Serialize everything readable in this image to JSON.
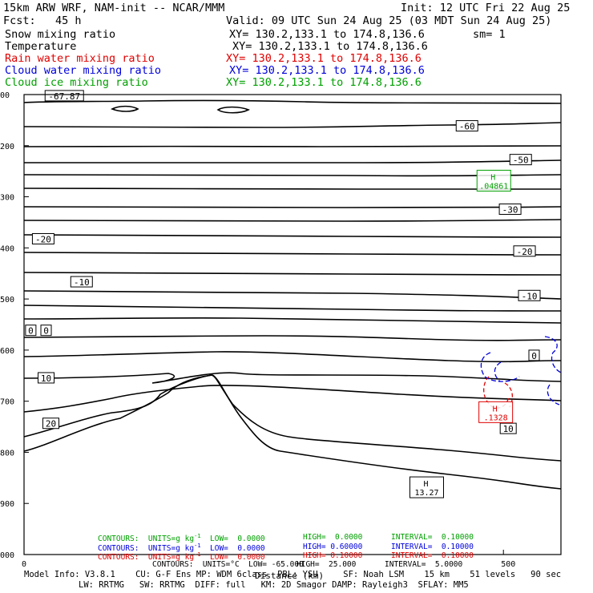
{
  "header": {
    "model": "15km ARW WRF, NAM-init -- NCAR/MMM",
    "init": "Init: 12 UTC Fri 22 Aug 25",
    "fcst": "Fcst:   45 h",
    "valid": "Valid: 09 UTC Sun 24 Aug 25 (03 MDT Sun 24 Aug 25)",
    "fields": [
      {
        "name": "Snow mixing ratio",
        "xy": "XY= 130.2,133.1 to 174.8,136.6",
        "extra": "sm= 1",
        "color": "#000000"
      },
      {
        "name": "Temperature",
        "xy": "XY= 130.2,133.1 to 174.8,136.6",
        "extra": "",
        "color": "#000000"
      },
      {
        "name": "Rain water mixing ratio",
        "xy": "XY= 130.2,133.1 to 174.8,136.6",
        "extra": "",
        "color": "#e00000"
      },
      {
        "name": "Cloud water mixing ratio",
        "xy": "XY= 130.2,133.1 to 174.8,136.6",
        "extra": "",
        "color": "#0000dd"
      },
      {
        "name": "Cloud ice mixing ratio",
        "xy": "XY= 130.2,133.1 to 174.8,136.6",
        "extra": "",
        "color": "#00a000"
      }
    ]
  },
  "chart_data": {
    "type": "contour cross-section",
    "xlabel": "Distance (km)",
    "x_ticks": [
      "0",
      "500"
    ],
    "xlim": [
      0,
      560
    ],
    "y_ticks": [
      "100",
      "200",
      "300",
      "400",
      "500",
      "600",
      "700",
      "800",
      "900",
      "1000"
    ],
    "ylim": [
      100,
      1000
    ],
    "y_tick_labels": [
      "00",
      "200",
      "300",
      "400",
      "500",
      "600",
      "700",
      "800",
      "900",
      "000"
    ],
    "temperature_contour_labels": [
      {
        "text": "-67.87",
        "x": 42,
        "p": 103
      },
      {
        "text": "-60",
        "x": 462,
        "p": 162
      },
      {
        "text": "-50",
        "x": 518,
        "p": 228
      },
      {
        "text": "-30",
        "x": 507,
        "p": 325
      },
      {
        "text": "-20",
        "x": 20,
        "p": 383
      },
      {
        "text": "-20",
        "x": 522,
        "p": 407
      },
      {
        "text": "-10",
        "x": 60,
        "p": 467
      },
      {
        "text": "-10",
        "x": 527,
        "p": 494
      },
      {
        "text": "0",
        "x": 7,
        "p": 562
      },
      {
        "text": "0",
        "x": 23,
        "p": 562
      },
      {
        "text": "0",
        "x": 532,
        "p": 611
      },
      {
        "text": "10",
        "x": 23,
        "p": 655
      },
      {
        "text": "10",
        "x": 505,
        "p": 754
      },
      {
        "text": "20",
        "x": 28,
        "p": 744
      }
    ],
    "extrema": [
      {
        "field": "Cloud ice mixing ratio",
        "type": "H",
        "value": ".04861",
        "x": 490,
        "p": 270,
        "color": "#00a000"
      },
      {
        "field": "Temperature",
        "type": "H",
        "value": "13.27",
        "x": 420,
        "p": 870,
        "color": "#000000"
      },
      {
        "field": "Rain water mixing ratio",
        "type": "H",
        "value": ".1328",
        "x": 492,
        "p": 723,
        "color": "#e00000"
      }
    ],
    "contour_summary": [
      {
        "field": "Cloud ice",
        "units": "UNITS=g kg",
        "low": "LOW=  0.0000",
        "high": "HIGH=  0.0000",
        "interval": "INTERVAL=  0.10000",
        "color": "#00a000"
      },
      {
        "field": "Cloud water",
        "units": "UNITS=g kg",
        "low": "LOW=  0.0000",
        "high": "HIGH= 0.60000",
        "interval": "INTERVAL=  0.10000",
        "color": "#0000dd"
      },
      {
        "field": "Rain water",
        "units": "UNITS=g kg",
        "low": "LOW=  0.0000",
        "high": "HIGH= 0.10000",
        "interval": "INTERVAL=  0.10000",
        "color": "#e00000"
      },
      {
        "field": "Temperature",
        "units": "UNITS=°C",
        "low": "LOW= -65.000",
        "high": "HIGH=  25.000",
        "interval": "INTERVAL=  5.0000",
        "color": "#000000"
      }
    ]
  },
  "footer": {
    "line1": "Model Info: V3.8.1    CU: G-F Ens MP: WDM 6class  PBL: YSU     SF: Noah LSM    15 km    51 levels   90 sec",
    "line2": "LW: RRTMG   SW: RRTMG  DIFF: full   KM: 2D Smagor DAMP: Rayleigh3  SFLAY: MM5"
  }
}
